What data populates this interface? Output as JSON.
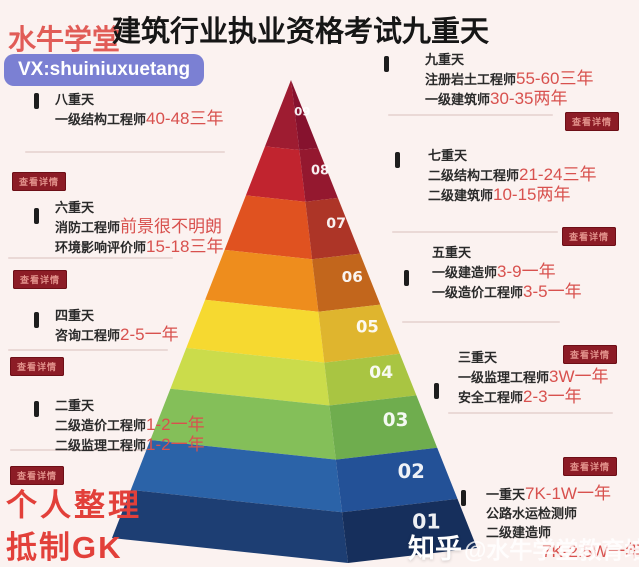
{
  "header": {
    "brand": "水牛学堂",
    "title": "建筑行业执业资格考试九重天",
    "vx": "VX:shuiniuxuetang"
  },
  "badge_label": "查看详情",
  "footer": {
    "line1": "个人整理",
    "line2": "抵制GK"
  },
  "watermark": {
    "source": "知乎",
    "account": "@水牛学堂教育培训"
  },
  "chart_data": {
    "type": "pyramid",
    "title": "建筑行业执业资格考试九重天",
    "levels": [
      {
        "num": "09",
        "tier": "九重天",
        "front": "#9e1c31",
        "side": "#86122e",
        "items": [
          {
            "label": "注册岩土工程师",
            "value": "55-60三年"
          },
          {
            "label": "一级建筑师",
            "value": "30-35两年"
          }
        ]
      },
      {
        "num": "08",
        "tier": "八重天",
        "front": "#c1242f",
        "side": "#94182f",
        "items": [
          {
            "label": "一级结构工程师",
            "value": "40-48三年"
          }
        ]
      },
      {
        "num": "07",
        "tier": "七重天",
        "front": "#e05220",
        "side": "#ad3527",
        "items": [
          {
            "label": "二级结构工程师",
            "value": "21-24三年"
          },
          {
            "label": "二级建筑师",
            "value": "10-15两年"
          }
        ]
      },
      {
        "num": "06",
        "tier": "六重天",
        "front": "#ee8d1d",
        "side": "#c2661c",
        "items": [
          {
            "label": "消防工程师",
            "value": "前景很不明朗"
          },
          {
            "label": "环境影响评价师",
            "value": "15-18三年"
          }
        ]
      },
      {
        "num": "05",
        "tier": "五重天",
        "front": "#f6d930",
        "side": "#dfb52e",
        "items": [
          {
            "label": "一级建造师",
            "value": "3-9一年"
          },
          {
            "label": "一级造价工程师",
            "value": "3-5一年"
          }
        ]
      },
      {
        "num": "04",
        "tier": "四重天",
        "front": "#cbdc4b",
        "side": "#a9c542",
        "items": [
          {
            "label": "咨询工程师",
            "value": "2-5一年"
          }
        ]
      },
      {
        "num": "03",
        "tier": "三重天",
        "front": "#84bf59",
        "side": "#6fad4e",
        "items": [
          {
            "label": "一级监理工程师",
            "value": "3W一年"
          },
          {
            "label": "安全工程师",
            "value": "2-3一年"
          }
        ]
      },
      {
        "num": "02",
        "tier": "二重天",
        "front": "#2b63a8",
        "side": "#235197",
        "items": [
          {
            "label": "二级造价工程师",
            "value": "1-2一年"
          },
          {
            "label": "二级监理工程师",
            "value": "1-2一年"
          }
        ]
      },
      {
        "num": "01",
        "tier": "一重天",
        "tier_value": "7K-1W一年",
        "front": "#1d3e73",
        "side": "#162f5c",
        "items": [
          {
            "label": "公路水运检测师"
          },
          {
            "label": "二级建造师"
          },
          {
            "value": "7K-2.5W一年"
          }
        ]
      }
    ],
    "level_bounds": [
      0,
      0.145,
      0.252,
      0.371,
      0.48,
      0.585,
      0.674,
      0.786,
      0.895,
      1
    ]
  }
}
